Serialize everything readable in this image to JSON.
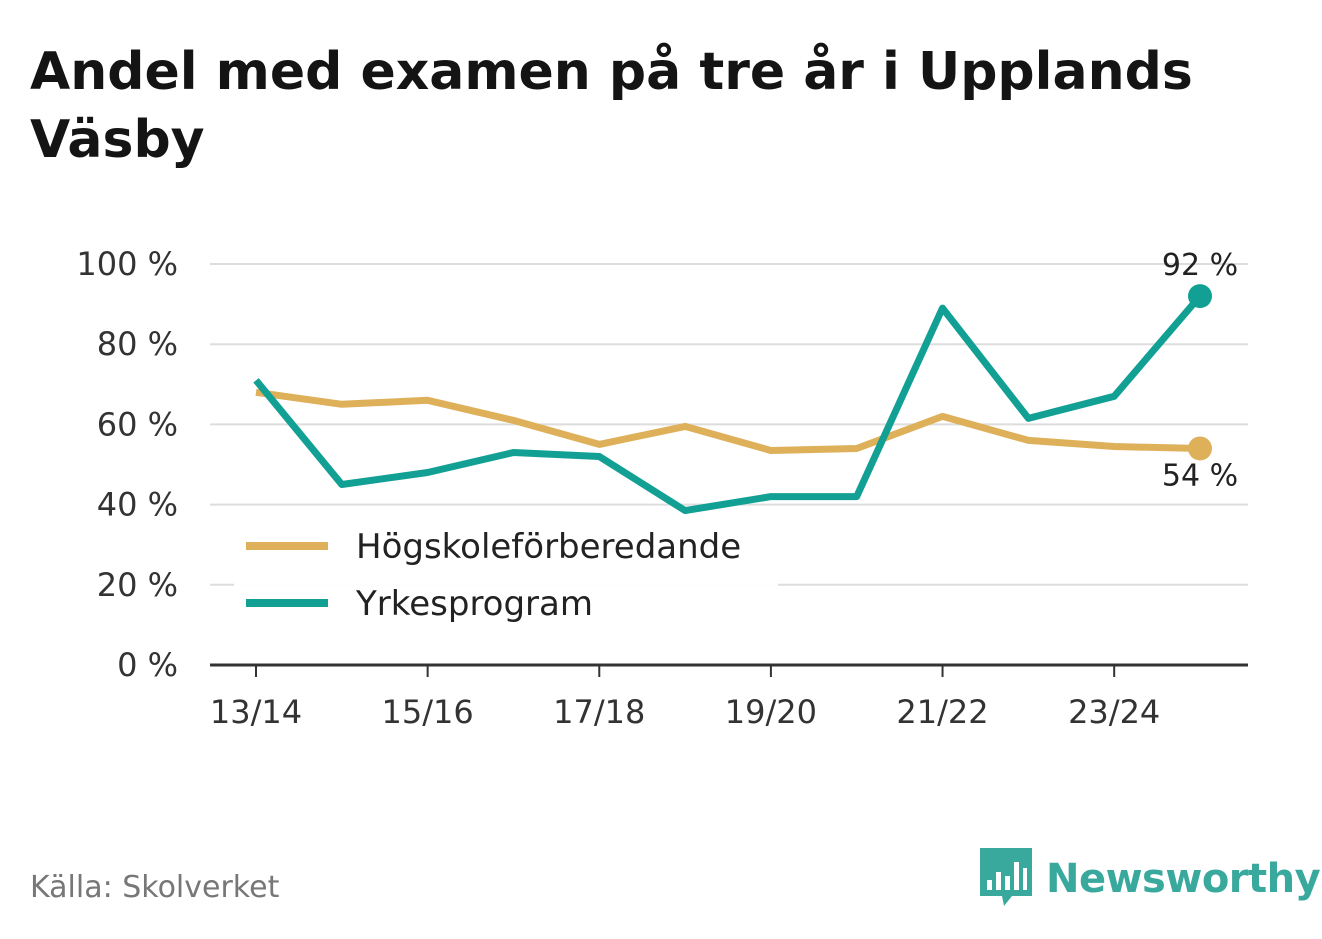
{
  "header": {
    "title": "Andel med examen på tre år i Upplands Väsby"
  },
  "footer": {
    "source": "Källa: Skolverket",
    "brand": "Newsworthy"
  },
  "colors": {
    "series_0": "#deb05a",
    "series_1": "#12a094",
    "brand": "#39a89d",
    "grid": "#dddddd",
    "axis": "#333333",
    "text": "#333333"
  },
  "chart_data": {
    "type": "line",
    "title": "Andel med examen på tre år i Upplands Väsby",
    "xlabel": "",
    "ylabel": "",
    "x": [
      "13/14",
      "14/15",
      "15/16",
      "16/17",
      "17/18",
      "18/19",
      "19/20",
      "20/21",
      "21/22",
      "22/23",
      "23/24",
      "24/25"
    ],
    "xtick_labels": [
      "13/14",
      "15/16",
      "17/18",
      "19/20",
      "21/22",
      "23/24"
    ],
    "ylim": [
      0,
      100
    ],
    "yticks": [
      0,
      20,
      40,
      60,
      80,
      100
    ],
    "ytick_labels": [
      "0 %",
      "20 %",
      "40 %",
      "60 %",
      "80 %",
      "100 %"
    ],
    "grid": true,
    "legend_position": "bottom-left",
    "series": [
      {
        "name": "Högskoleförberedande",
        "values": [
          68,
          65,
          66,
          61,
          55,
          59.5,
          53.5,
          54,
          62,
          56,
          54.5,
          54
        ],
        "end_label": "54 %"
      },
      {
        "name": "Yrkesprogram",
        "values": [
          71,
          45,
          48,
          53,
          52,
          38.5,
          42,
          42,
          89,
          61.5,
          67,
          92
        ],
        "end_label": "92 %"
      }
    ]
  }
}
